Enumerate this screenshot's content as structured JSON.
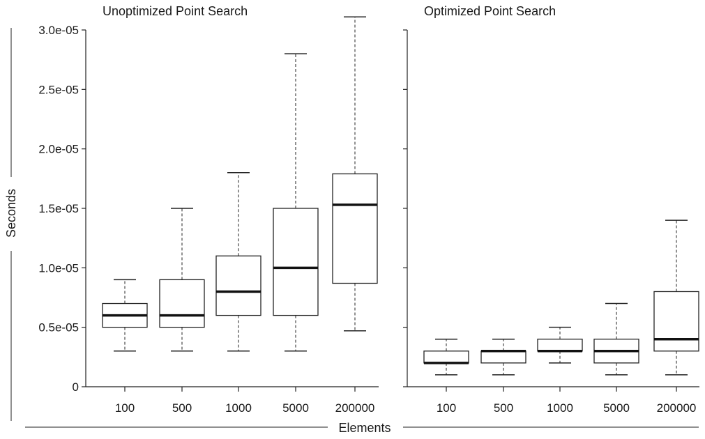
{
  "chart_data": {
    "type": "boxplot",
    "xlabel": "Elements",
    "ylabel": "Seconds",
    "ylim": [
      0,
      3e-05
    ],
    "y_ticks": [
      0,
      5e-06,
      1e-05,
      1.5e-05,
      2e-05,
      2.5e-05,
      3e-05
    ],
    "y_tick_labels": [
      "0",
      "0.5e-05",
      "1.0e-05",
      "1.5e-05",
      "2.0e-05",
      "2.5e-05",
      "3.0e-05"
    ],
    "categories": [
      "100",
      "500",
      "1000",
      "5000",
      "200000"
    ],
    "grid": false,
    "panels": [
      {
        "title": "Unoptimized Point Search",
        "boxes": [
          {
            "category": "100",
            "min": 3e-06,
            "q1": 5e-06,
            "median": 6e-06,
            "q3": 7e-06,
            "max": 9e-06
          },
          {
            "category": "500",
            "min": 3e-06,
            "q1": 5e-06,
            "median": 6e-06,
            "q3": 9e-06,
            "max": 1.5e-05
          },
          {
            "category": "1000",
            "min": 3e-06,
            "q1": 6e-06,
            "median": 8e-06,
            "q3": 1.1e-05,
            "max": 1.8e-05
          },
          {
            "category": "5000",
            "min": 3e-06,
            "q1": 6e-06,
            "median": 1e-05,
            "q3": 1.5e-05,
            "max": 2.8e-05
          },
          {
            "category": "200000",
            "min": 4.7e-06,
            "q1": 8.7e-06,
            "median": 1.53e-05,
            "q3": 1.79e-05,
            "max": 3.11e-05
          }
        ]
      },
      {
        "title": "Optimized Point Search",
        "boxes": [
          {
            "category": "100",
            "min": 1e-06,
            "q1": 2e-06,
            "median": 2e-06,
            "q3": 3e-06,
            "max": 4e-06
          },
          {
            "category": "500",
            "min": 1e-06,
            "q1": 2e-06,
            "median": 3e-06,
            "q3": 3e-06,
            "max": 4e-06
          },
          {
            "category": "1000",
            "min": 2e-06,
            "q1": 3e-06,
            "median": 3e-06,
            "q3": 4e-06,
            "max": 5e-06
          },
          {
            "category": "5000",
            "min": 1e-06,
            "q1": 2e-06,
            "median": 3e-06,
            "q3": 4e-06,
            "max": 7e-06
          },
          {
            "category": "200000",
            "min": 1e-06,
            "q1": 3e-06,
            "median": 4e-06,
            "q3": 8e-06,
            "max": 1.4e-05
          }
        ]
      }
    ]
  }
}
